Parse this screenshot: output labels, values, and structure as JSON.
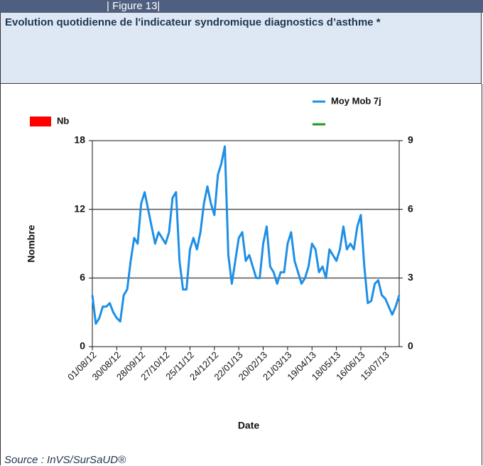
{
  "header": {
    "figure": "| Figure 13|",
    "title": "Evolution quotidienne de l'indicateur syndromique diagnostics d’asthme *"
  },
  "chart_data": {
    "type": "line",
    "ylabel": "Nombre",
    "xlabel": "Date",
    "categories": [
      "01/08/12",
      null,
      null,
      null,
      null,
      null,
      null,
      "30/08/12",
      null,
      null,
      null,
      null,
      null,
      null,
      "28/09/12",
      null,
      null,
      null,
      null,
      null,
      null,
      "27/10/12",
      null,
      null,
      null,
      null,
      null,
      null,
      "25/11/12",
      null,
      null,
      null,
      null,
      null,
      null,
      "24/12/12",
      null,
      null,
      null,
      null,
      null,
      null,
      "22/01/13",
      null,
      null,
      null,
      null,
      null,
      null,
      "20/02/13",
      null,
      null,
      null,
      null,
      null,
      null,
      "21/03/13",
      null,
      null,
      null,
      null,
      null,
      null,
      "19/04/13",
      null,
      null,
      null,
      null,
      null,
      null,
      "18/05/13",
      null,
      null,
      null,
      null,
      null,
      null,
      "16/06/13",
      null,
      null,
      null,
      null,
      null,
      null,
      "15/07/13",
      null,
      null,
      null,
      null
    ],
    "series": [
      {
        "name": "Moy Mob 7j",
        "color": "#1e8fe6",
        "values": [
          4.5,
          2,
          2.5,
          3.5,
          3.5,
          3.8,
          3,
          2.5,
          2.2,
          4.5,
          5,
          7.5,
          9.5,
          9,
          12.5,
          13.5,
          12,
          10.5,
          9,
          10,
          9.5,
          9,
          10,
          13,
          13.5,
          7.5,
          5,
          5,
          8.5,
          9.5,
          8.5,
          10,
          12.5,
          14,
          12.5,
          11.5,
          15,
          16,
          17.5,
          8,
          5.5,
          7.5,
          9.5,
          10,
          7.5,
          8,
          7,
          6,
          6,
          9,
          10.5,
          7,
          6.5,
          5.5,
          6.5,
          6.5,
          9,
          10,
          7.5,
          6.5,
          5.5,
          6,
          7,
          9,
          8.5,
          6.5,
          7,
          6,
          8.5,
          8,
          7.5,
          8.5,
          10.5,
          8.5,
          9,
          8.5,
          10.5,
          11.5,
          7,
          3.8,
          4,
          5.5,
          5.8,
          4.5,
          4.2,
          3.5,
          2.8,
          3.5,
          4.5
        ]
      }
    ],
    "legend": [
      {
        "name": "Nb",
        "color": "#ff0000"
      },
      {
        "name": "Moy Mob 7j",
        "color": "#1e8fe6"
      },
      {
        "color": "#1a9a1a"
      }
    ],
    "ylim": [
      0,
      18
    ],
    "yticks": [
      0,
      6,
      12,
      18
    ],
    "y2lim": [
      0,
      9
    ],
    "y2ticks": [
      0,
      3,
      6,
      9
    ],
    "grid": true
  },
  "source": "Source : InVS/SurSaUD®"
}
